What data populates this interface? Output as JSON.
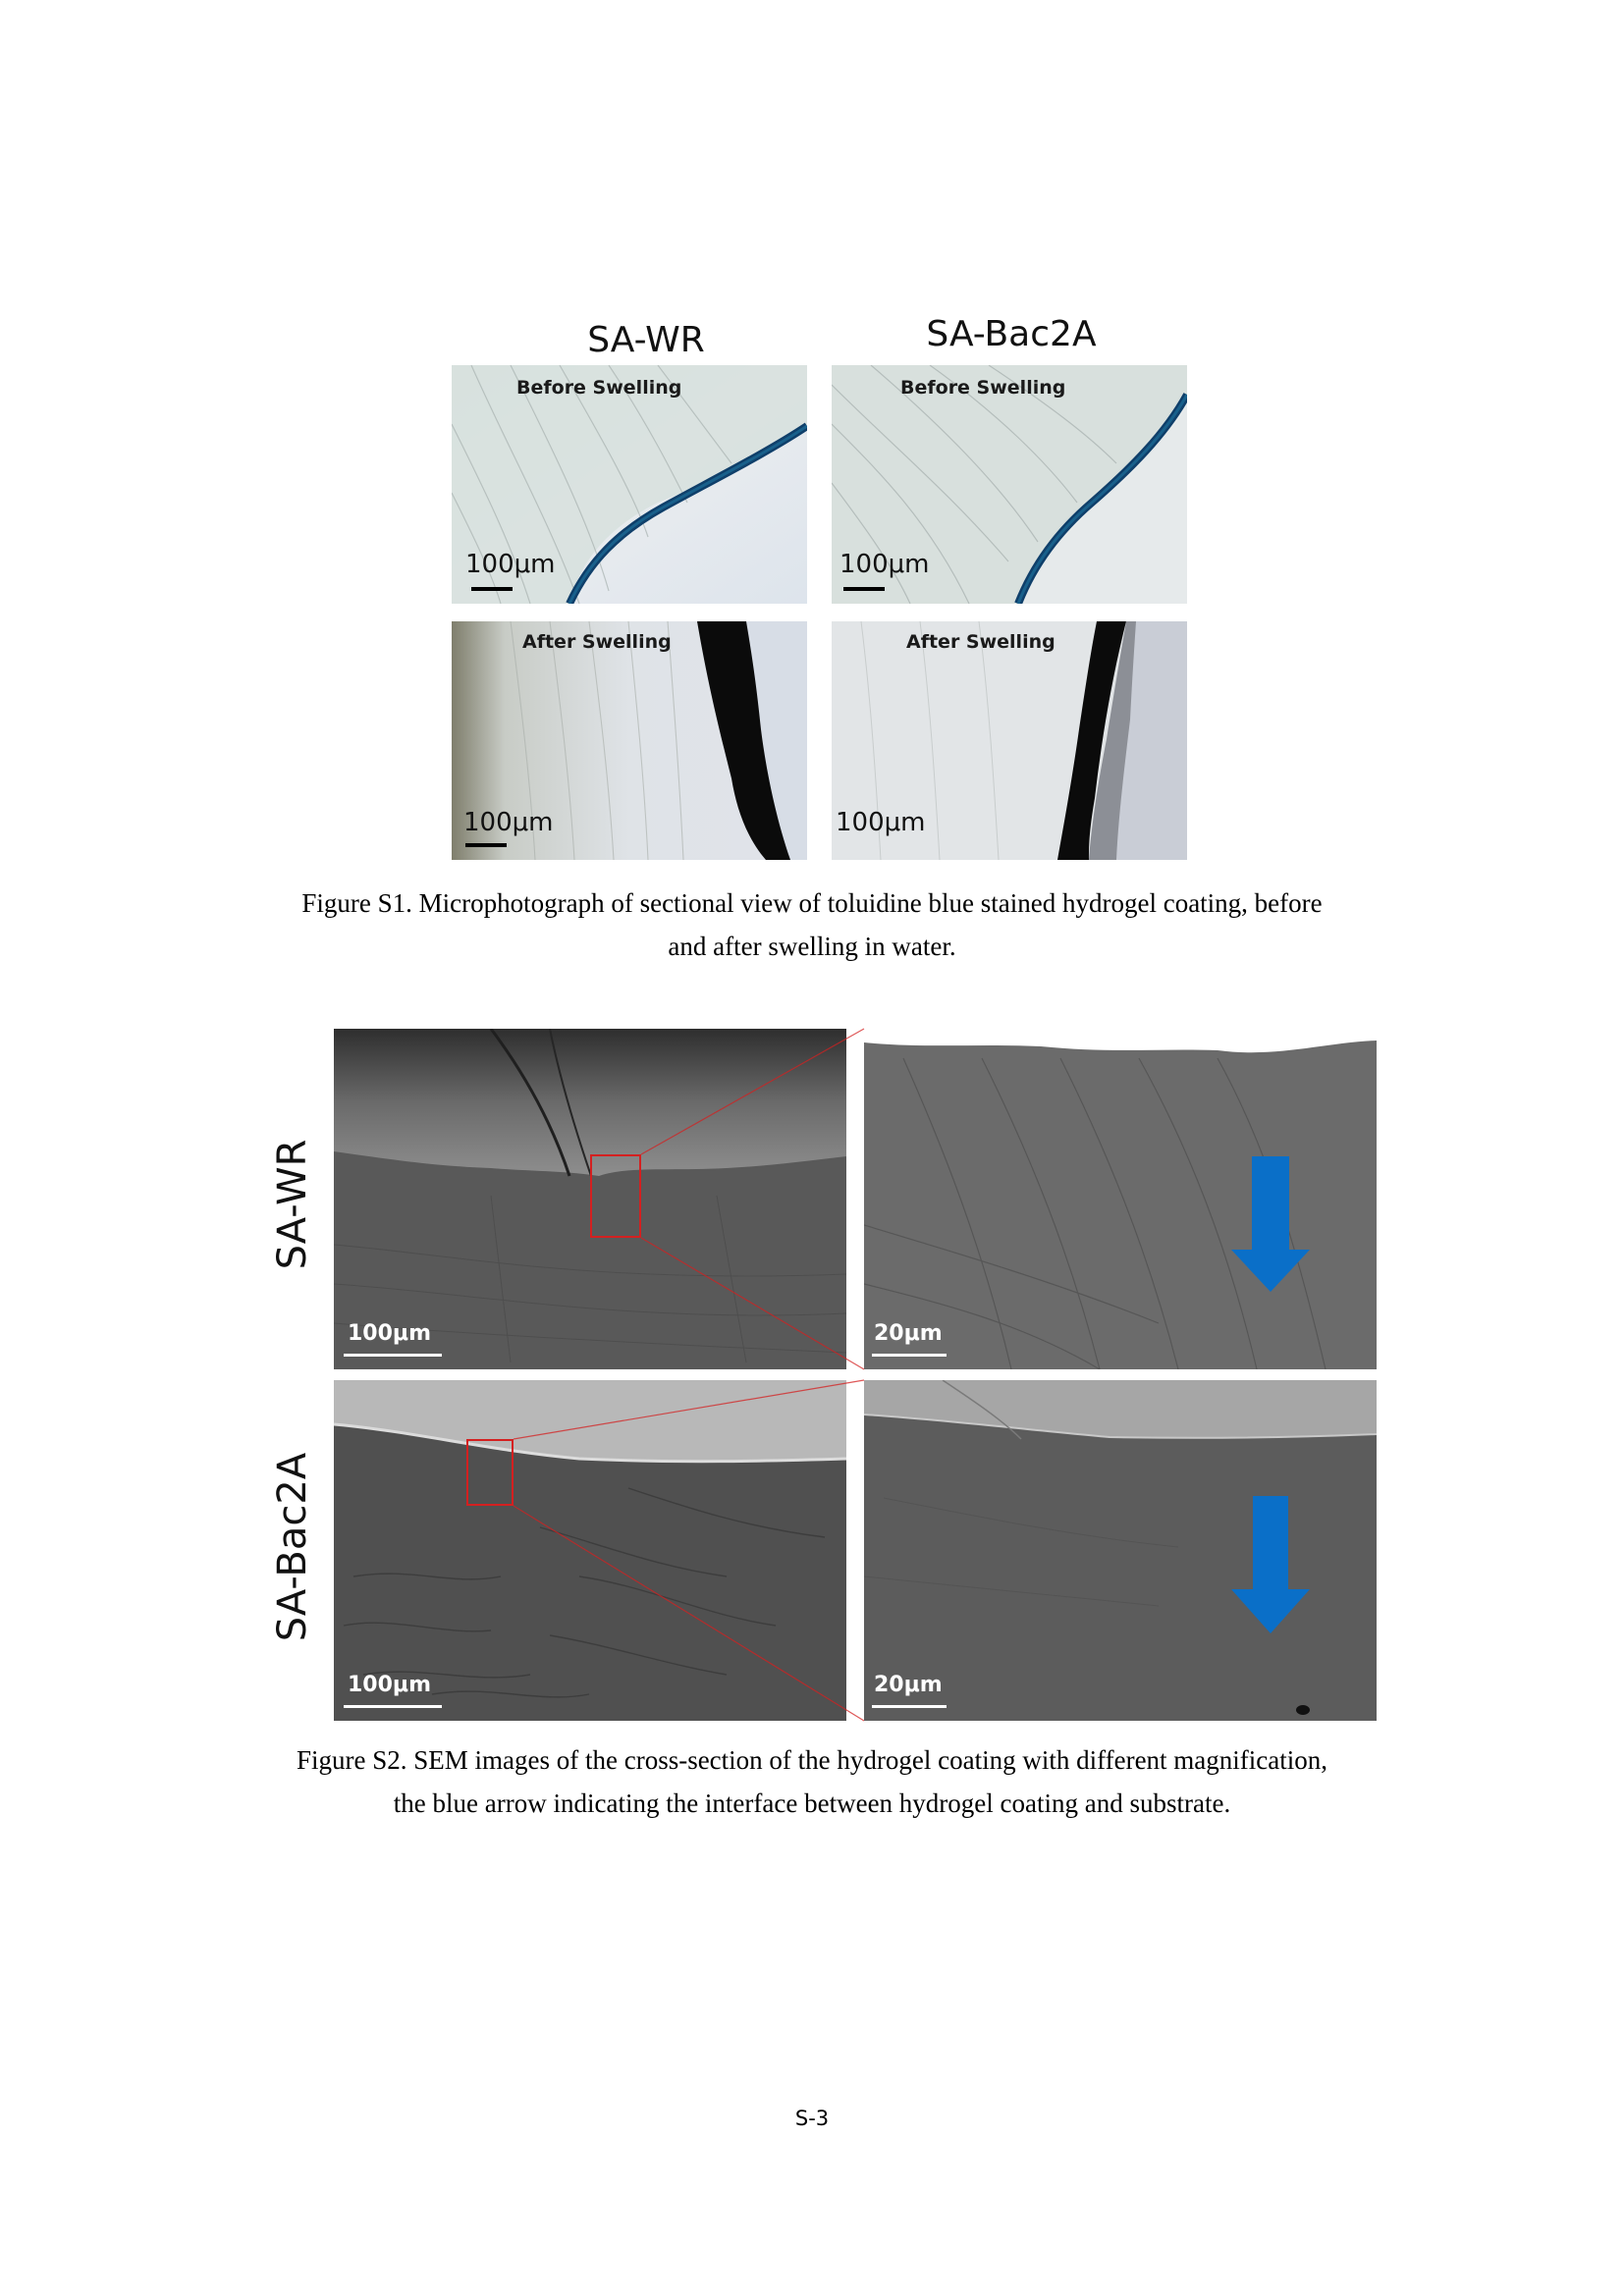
{
  "figure_s1": {
    "column_titles": [
      "SA-WR",
      "SA-Bac2A"
    ],
    "panels": {
      "wr_before": {
        "label": "Before Swelling",
        "scale": "100μm"
      },
      "bac_before": {
        "label": "Before Swelling",
        "scale": "100μm"
      },
      "wr_after": {
        "label": "After Swelling",
        "scale": "100μm"
      },
      "bac_after": {
        "label": "After Swelling",
        "scale": "100μm"
      }
    },
    "caption_line1": "Figure S1. Microphotograph of sectional view of toluidine blue stained hydrogel coating, before",
    "caption_line2": "and after swelling in water."
  },
  "figure_s2": {
    "row_labels": [
      "SA-WR",
      "SA-Bac2A"
    ],
    "panels": {
      "wr_low": {
        "scale": "100μm"
      },
      "wr_high": {
        "scale": "20μm"
      },
      "bac_low": {
        "scale": "100μm"
      },
      "bac_high": {
        "scale": "20μm"
      }
    },
    "arrow_color": "#0a6fc8",
    "zoom_box_color": "#d42020",
    "caption_line1": "Figure S2. SEM images of the cross-section of the hydrogel coating with different magnification,",
    "caption_line2": "the blue arrow indicating the interface between hydrogel coating and substrate."
  },
  "page_number": "S-3"
}
